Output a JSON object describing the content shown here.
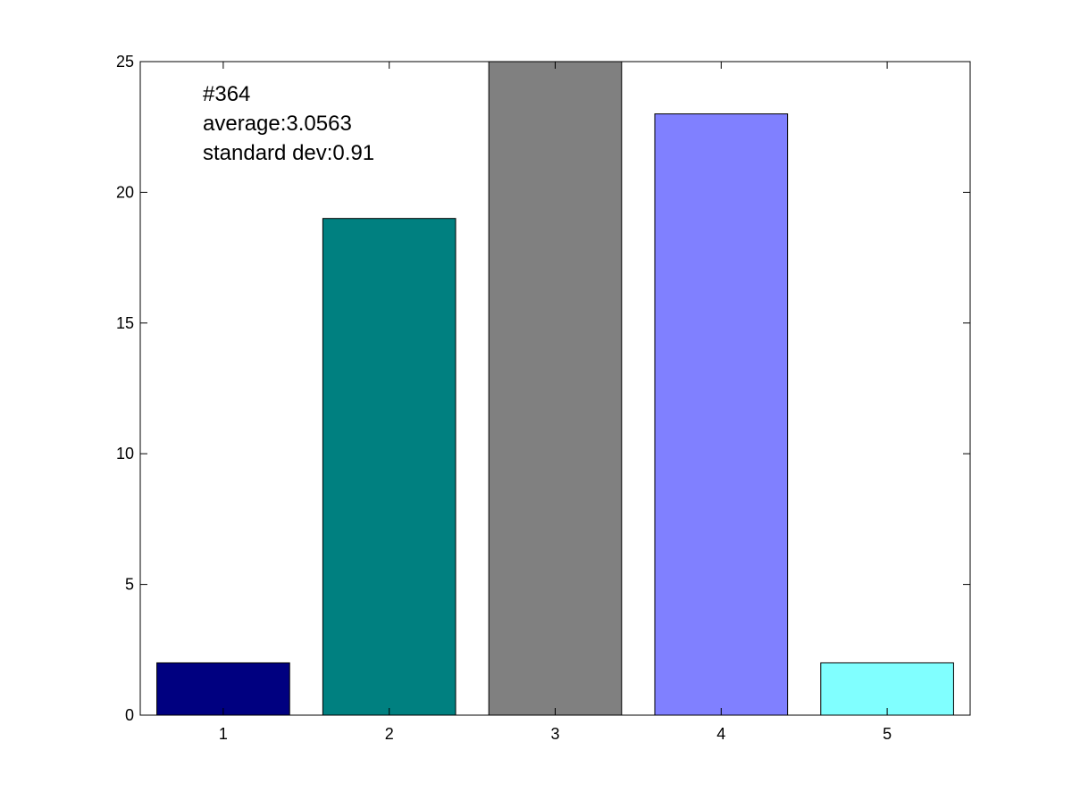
{
  "chart_data": {
    "type": "bar",
    "title": "",
    "xlabel": "",
    "ylabel": "",
    "categories": [
      "1",
      "2",
      "3",
      "4",
      "5"
    ],
    "values": [
      2,
      19,
      25,
      23,
      2
    ],
    "bar_colors": [
      "#000080",
      "#008080",
      "#808080",
      "#8080ff",
      "#80ffff"
    ],
    "xlim": [
      0.5,
      5.5
    ],
    "ylim": [
      0,
      25
    ],
    "y_ticks": [
      0,
      5,
      10,
      15,
      20,
      25
    ],
    "grid": false,
    "legend": "none",
    "annotations": [
      "#364",
      "average:3.0563",
      "standard dev:0.91"
    ]
  }
}
